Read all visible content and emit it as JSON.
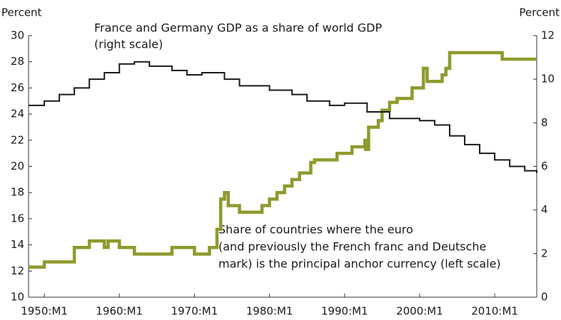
{
  "chart_data": {
    "type": "step",
    "ylabel": "Percent",
    "y2label": "Percent",
    "annotations": [
      "France and Germany GDP as a share of world GDP",
      "(right scale)",
      "Share of countries where the euro",
      "(and previously the French franc and Deutsche",
      "mark) is the principal anchor currency (left scale)"
    ],
    "xlim": [
      1947.9,
      2015.6
    ],
    "xticks": [
      {
        "value": 1950,
        "label": "1950:M1"
      },
      {
        "value": 1960,
        "label": "1960:M1"
      },
      {
        "value": 1970,
        "label": "1970:M1"
      },
      {
        "value": 1980,
        "label": "1980:M1"
      },
      {
        "value": 1990,
        "label": "1990:M1"
      },
      {
        "value": 2000,
        "label": "2000:M1"
      },
      {
        "value": 2010,
        "label": "2010:M1"
      }
    ],
    "ylim": [
      10,
      30
    ],
    "yticks": [
      10,
      12,
      14,
      16,
      18,
      20,
      22,
      24,
      26,
      28,
      30
    ],
    "y2lim": [
      0,
      12
    ],
    "y2ticks": [
      0,
      2,
      4,
      6,
      8,
      10,
      12
    ],
    "series": [
      {
        "name": "Share of countries where the euro is the principal anchor currency",
        "color": "#8f9a2e",
        "axis": "y",
        "x": [
          1947.9,
          1950,
          1954,
          1956,
          1958,
          1958.5,
          1960,
          1962,
          1967,
          1970,
          1972,
          1973,
          1973.5,
          1974,
          1974.5,
          1976,
          1979,
          1980,
          1981,
          1982,
          1983,
          1984,
          1985.5,
          1986,
          1989,
          1991,
          1992.7,
          1992.8,
          1993.2,
          1994.5,
          1995,
          1996,
          1997,
          1999,
          2000.5,
          2001,
          2003,
          2003.5,
          2004,
          2011,
          2015.6
        ],
        "values": [
          12.3,
          12.7,
          13.8,
          14.3,
          13.8,
          14.3,
          13.8,
          13.3,
          13.8,
          13.3,
          13.8,
          15.2,
          17.5,
          18,
          17,
          16.5,
          17,
          17.5,
          18,
          18.5,
          19,
          19.5,
          20.3,
          20.5,
          21,
          21.5,
          22,
          21.3,
          23,
          23.5,
          24.3,
          24.9,
          25.2,
          26,
          27.5,
          26.5,
          27,
          27.5,
          28.7,
          28.2,
          28.2
        ]
      },
      {
        "name": "France and Germany GDP as a share of world GDP",
        "color": "#1a1a1a",
        "axis": "y2",
        "x": [
          1947.9,
          1950,
          1952,
          1954,
          1956,
          1958,
          1960,
          1962,
          1964,
          1967,
          1969,
          1971,
          1974,
          1976,
          1980,
          1983,
          1985,
          1988,
          1990,
          1993,
          1996,
          2000,
          2002,
          2004,
          2006,
          2008,
          2010,
          2012,
          2014,
          2015.6
        ],
        "values": [
          8.8,
          9.0,
          9.3,
          9.6,
          10.0,
          10.3,
          10.7,
          10.8,
          10.6,
          10.4,
          10.2,
          10.3,
          10.0,
          9.7,
          9.5,
          9.3,
          9.0,
          8.8,
          8.9,
          8.5,
          8.2,
          8.1,
          7.9,
          7.4,
          7.0,
          6.6,
          6.3,
          6.0,
          5.8,
          5.7
        ]
      }
    ]
  }
}
